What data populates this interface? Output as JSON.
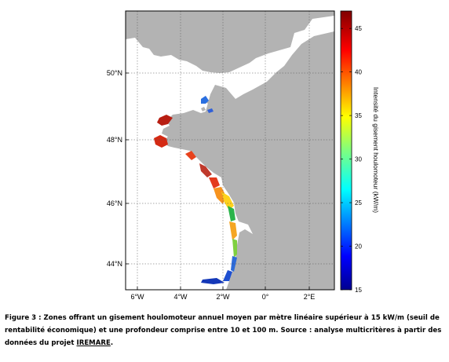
{
  "map": {
    "lat_labels": [
      "50°N",
      "48°N",
      "46°N",
      "44°N"
    ],
    "lon_labels": [
      "6°W",
      "4°W",
      "2°W",
      "0°",
      "2°E"
    ],
    "colors": {
      "land": "#b3b3b3",
      "sea": "#ffffff",
      "grid": "#555555"
    }
  },
  "colorbar": {
    "label": "Intensité du gisement houlomoteur (kW/m)",
    "min": 15,
    "max": 47,
    "ticks": [
      "15",
      "20",
      "25",
      "30",
      "35",
      "40",
      "45"
    ],
    "colormap": "jet"
  },
  "caption": {
    "line1": "Figure 3 : Zones offrant un gisement houlomoteur annuel moyen par mètre linéaire supérieur à 15 kW/m (seuil de",
    "line2": "rentabilité économique) et une profondeur comprise entre 10 et 100 m. Source : analyse multicritères à partir des",
    "line3_prefix": "données du projet ",
    "line3_link": "IREMARE",
    "line3_suffix": "."
  }
}
